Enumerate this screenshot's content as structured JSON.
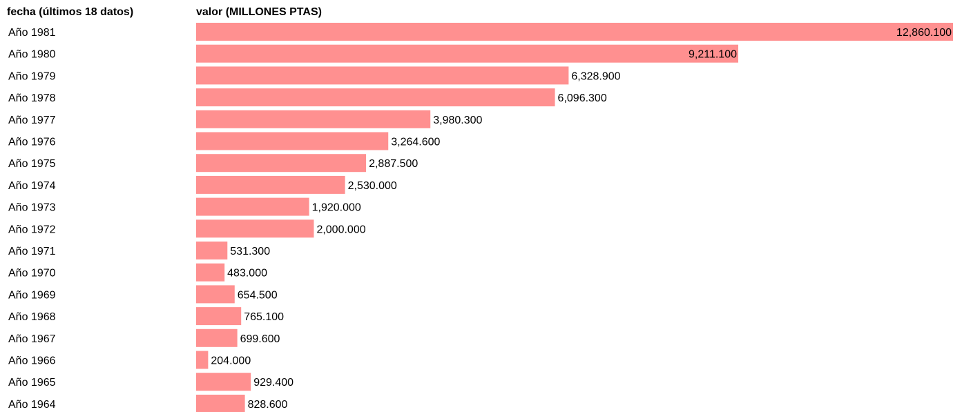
{
  "chart_data": {
    "type": "bar",
    "orientation": "horizontal",
    "category_header": "fecha (últimos 18 datos)",
    "value_header": "valor (MILLONES PTAS)",
    "bar_color": "#ff9090",
    "categories": [
      "Año 1981",
      "Año 1980",
      "Año 1979",
      "Año 1978",
      "Año 1977",
      "Año 1976",
      "Año 1975",
      "Año 1974",
      "Año 1973",
      "Año 1972",
      "Año 1971",
      "Año 1970",
      "Año 1969",
      "Año 1968",
      "Año 1967",
      "Año 1966",
      "Año 1965",
      "Año 1964"
    ],
    "values": [
      12860.1,
      9211.1,
      6328.9,
      6096.3,
      3980.3,
      3264.6,
      2887.5,
      2530.0,
      1920.0,
      2000.0,
      531.3,
      483.0,
      654.5,
      765.1,
      699.6,
      204.0,
      929.4,
      828.6
    ],
    "value_labels": [
      "12,860.100",
      "9,211.100",
      "6,328.900",
      "6,096.300",
      "3,980.300",
      "3,264.600",
      "2,887.500",
      "2,530.000",
      "1,920.000",
      "2,000.000",
      "531.300",
      "483.000",
      "654.500",
      "765.100",
      "699.600",
      "204.000",
      "929.400",
      "828.600"
    ],
    "xlim": [
      0,
      12860.1
    ],
    "grid": false
  }
}
